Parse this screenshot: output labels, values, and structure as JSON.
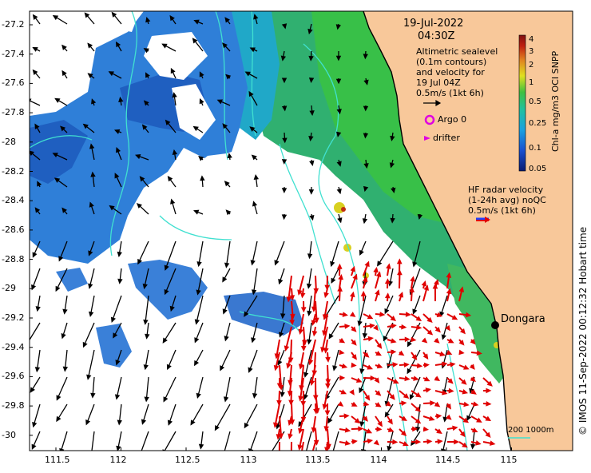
{
  "map": {
    "date": "19-Jul-2022",
    "time": "04:30Z",
    "altimetry_text": [
      "Altimetric sealevel",
      "(0.1m contours)",
      "and velocity for",
      "19 Jul 04Z",
      "0.5m/s (1kt 6h)"
    ],
    "argo_label": "Argo 0",
    "drifter_label": "drifter",
    "hf_text": [
      "HF radar velocity",
      "(1-24h avg) noQC",
      "0.5m/s (1kt 6h)"
    ],
    "place_name": "Dongara",
    "scale_label": "200  1000m",
    "credit": "© IMOS 11-Sep-2022 00:12:32 Hobart time",
    "colorbar": {
      "title": "Chl-a mg/m3 OCI SNPP",
      "ticks": [
        "4",
        "3",
        "2",
        "1",
        "0.5",
        "0.25",
        "0.1",
        "0.05"
      ]
    },
    "lat_ticks": [
      "-27.2",
      "-27.4",
      "-27.6",
      "-27.8",
      "-28",
      "-28.2",
      "-28.4",
      "-28.6",
      "-28.8",
      "-29",
      "-29.2",
      "-29.4",
      "-29.6",
      "-29.8",
      "-30"
    ],
    "lon_ticks": [
      "111.5",
      "112",
      "112.5",
      "113",
      "113.5",
      "114",
      "114.5",
      "115"
    ],
    "colors": {
      "land": "#f8c89a",
      "coast": "#000000",
      "contour": "#40e0d0",
      "hf_arrows": "#e00000",
      "argo": "#e000e0"
    }
  }
}
